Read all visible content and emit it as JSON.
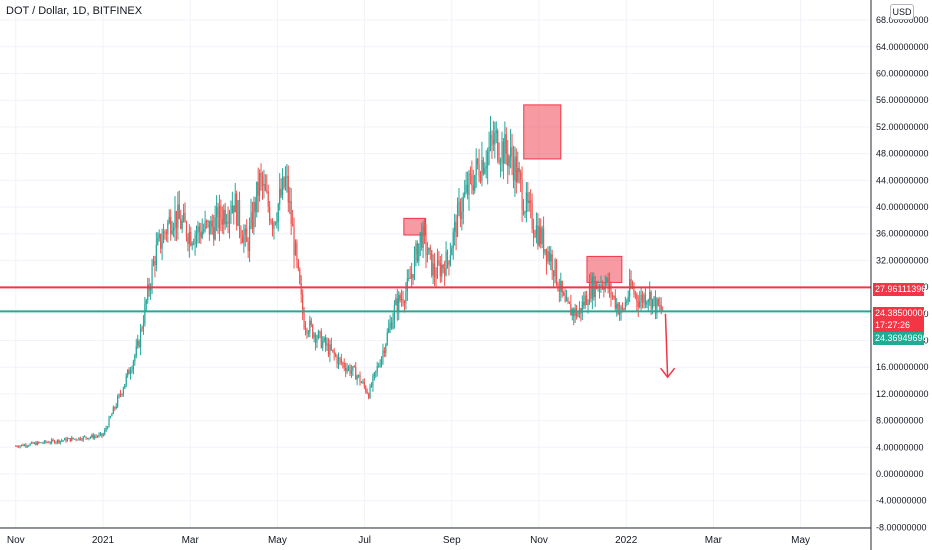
{
  "header": {
    "title": "DOT / Dollar, 1D, BITFINEX",
    "currency": "USD"
  },
  "tags": {
    "red_line": {
      "label": "27.96111396",
      "color": "#f23645"
    },
    "last_price": {
      "label": "24.38500000",
      "color": "#f23645"
    },
    "countdown": {
      "label": "17:27:26",
      "color": "#f23645"
    },
    "green_line": {
      "label": "24.36949696",
      "color": "#22ab94"
    }
  },
  "chart_data": {
    "type": "candlestick",
    "x_ticks": [
      "Nov",
      "2021",
      "Mar",
      "May",
      "Jul",
      "Sep",
      "Nov",
      "2022",
      "Mar",
      "May"
    ],
    "y_ticks": [
      -8,
      -4,
      0,
      4,
      8,
      12,
      16,
      20,
      24,
      28,
      32,
      36,
      40,
      44,
      48,
      52,
      56,
      60,
      64,
      68
    ],
    "y_tick_labels": [
      "-8.00000000",
      "-4.00000000",
      "0.00000000",
      "4.00000000",
      "8.00000000",
      "12.00000000",
      "16.00000000",
      "20.00000000",
      "24.00000000",
      "28.00000000",
      "32.00000000",
      "36.00000000",
      "40.00000000",
      "44.00000000",
      "48.00000000",
      "52.00000000",
      "56.00000000",
      "60.00000000",
      "64.00000000",
      "68.00000000"
    ],
    "ylim": [
      -8,
      70
    ],
    "price_path": {
      "x_months_from_2021": [
        -2.0,
        -1.0,
        0.0,
        0.4,
        0.8,
        1.2,
        1.6,
        2.0,
        2.5,
        3.0,
        3.3,
        3.6,
        3.9,
        4.2,
        4.6,
        5.0,
        5.4,
        5.8,
        6.1,
        6.4,
        6.7,
        7.0,
        7.3,
        7.6,
        7.9,
        8.2,
        8.6,
        9.0,
        9.4,
        9.7,
        10.0,
        10.3,
        10.6,
        10.9,
        11.2,
        11.5,
        11.9,
        12.1,
        12.3,
        12.5,
        12.7,
        12.85
      ],
      "close": [
        4.2,
        5.0,
        5.8,
        12,
        19,
        33,
        39,
        36,
        37,
        41,
        34,
        44,
        38,
        44,
        23,
        20,
        17,
        15,
        12,
        18,
        25,
        28,
        36,
        30,
        32,
        40,
        46,
        50,
        47,
        40,
        36,
        32,
        25,
        24,
        28,
        29,
        24,
        28,
        26,
        27,
        25,
        24.4
      ]
    },
    "horizontal_lines": [
      {
        "value": 27.96111396,
        "color": "#f23645"
      },
      {
        "value": 24.36949696,
        "color": "#22ab94"
      }
    ],
    "boxes": [
      {
        "x_range_months_from_2021": [
          6.9,
          7.4
        ],
        "y_range": [
          35.8,
          38.3
        ],
        "color": "#f23645"
      },
      {
        "x_range_months_from_2021": [
          9.65,
          10.5
        ],
        "y_range": [
          47.2,
          55.3
        ],
        "color": "#f23645"
      },
      {
        "x_range_months_from_2021": [
          11.1,
          11.9
        ],
        "y_range": [
          28.7,
          32.6
        ],
        "color": "#f23645"
      }
    ],
    "arrow": {
      "from": {
        "month_from_2021": 12.9,
        "value": 24
      },
      "to": {
        "month_from_2021": 12.95,
        "value": 14.5
      },
      "color": "#f23645"
    },
    "up_color": "#26a69a",
    "down_color": "#ef5350",
    "grid": true
  }
}
